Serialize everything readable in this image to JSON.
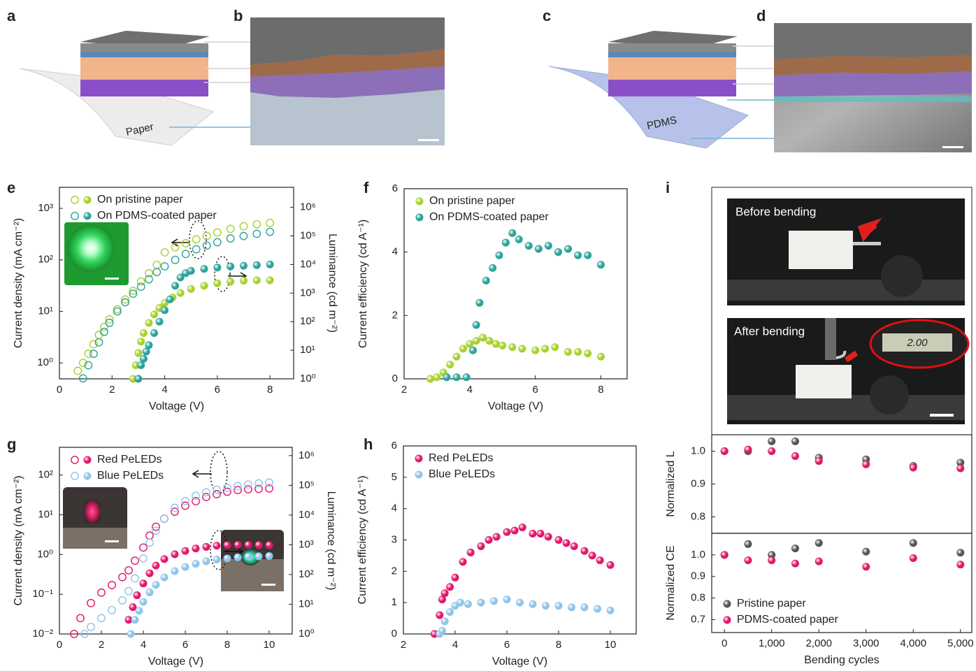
{
  "illustrations": [
    {
      "label": "a",
      "text": "Paper"
    },
    {
      "label": "b"
    },
    {
      "label": "c",
      "text": "PDMS"
    },
    {
      "label": "d"
    }
  ],
  "photos": {
    "label": "i",
    "before": "Before bending",
    "after": "After bending",
    "display": "2.00"
  },
  "chart_data": [
    {
      "type": "scatter",
      "label": "e",
      "xlabel": "Voltage (V)",
      "ylabel": "Current density (mA cm⁻²)",
      "y2label": "Luminance (cd m⁻²)",
      "xlim": [
        0,
        8.9
      ],
      "xticks": [
        0,
        2,
        4,
        6,
        8
      ],
      "ylim": [
        0.49,
        2560
      ],
      "ylog": true,
      "yticks": [
        {
          "value": 1,
          "label": "10⁰"
        },
        {
          "value": 10,
          "label": "10¹"
        },
        {
          "value": 100,
          "label": "10²"
        },
        {
          "value": 1000,
          "label": "10³"
        }
      ],
      "y2lim": [
        1,
        5000000
      ],
      "y2log": true,
      "y2ticks": [
        {
          "value": 1,
          "label": "10⁰"
        },
        {
          "value": 10,
          "label": "10¹"
        },
        {
          "value": 100,
          "label": "10²"
        },
        {
          "value": 1000,
          "label": "10³"
        },
        {
          "value": 10000,
          "label": "10⁴"
        },
        {
          "value": 100000,
          "label": "10⁵"
        },
        {
          "value": 1000000,
          "label": "10⁶"
        }
      ],
      "legend": "upper left",
      "series": [
        {
          "name": "On pristine paper",
          "color": "#a6d22c",
          "marker": "open",
          "x": [
            0.7,
            0.9,
            1.1,
            1.3,
            1.5,
            1.7,
            1.9,
            2.2,
            2.5,
            2.8,
            3.1,
            3.4,
            3.7,
            4.0,
            4.4,
            4.8,
            5.2,
            5.6,
            6.0,
            6.5,
            7.0,
            7.5,
            8.0
          ],
          "values": [
            0.7,
            1.0,
            1.5,
            2.3,
            3.5,
            5,
            7,
            11,
            17,
            25,
            38,
            55,
            80,
            140,
            175,
            210,
            250,
            290,
            340,
            400,
            450,
            490,
            520
          ]
        },
        {
          "color": "#a6d22c",
          "marker": "filled",
          "axis": "y2",
          "x": [
            2.8,
            2.9,
            3.0,
            3.1,
            3.2,
            3.4,
            3.6,
            3.8,
            4.0,
            4.3,
            4.6,
            5.0,
            5.5,
            6.0,
            6.5,
            7.0,
            7.5,
            8.0
          ],
          "values": [
            1,
            3,
            8,
            20,
            40,
            90,
            180,
            300,
            450,
            700,
            1000,
            1400,
            1800,
            2200,
            2500,
            2700,
            2800,
            2800
          ]
        },
        {
          "name": "On PDMS-coated paper",
          "color": "#2aa39b",
          "marker": "open",
          "x": [
            0.9,
            1.1,
            1.3,
            1.5,
            1.7,
            1.9,
            2.2,
            2.5,
            2.8,
            3.1,
            3.4,
            3.7,
            4.0,
            4.4,
            4.8,
            5.2,
            5.6,
            6.0,
            6.5,
            7.0,
            7.5,
            8.0
          ],
          "values": [
            0.5,
            0.9,
            1.5,
            2.5,
            4,
            6,
            10,
            15,
            22,
            30,
            42,
            58,
            75,
            100,
            130,
            160,
            190,
            220,
            260,
            290,
            320,
            350
          ]
        },
        {
          "color": "#2aa39b",
          "marker": "filled",
          "axis": "y2",
          "x": [
            3.0,
            3.1,
            3.2,
            3.3,
            3.4,
            3.6,
            3.8,
            4.0,
            4.2,
            4.4,
            4.6,
            4.8,
            5.0,
            5.5,
            6.0,
            6.5,
            7.0,
            7.5,
            8.0
          ],
          "values": [
            1,
            3,
            5,
            9,
            15,
            40,
            100,
            250,
            600,
            1800,
            3500,
            5000,
            6000,
            7000,
            7800,
            8500,
            9000,
            9500,
            10000
          ]
        }
      ]
    },
    {
      "type": "scatter",
      "label": "f",
      "xlabel": "Voltage (V)",
      "ylabel": "Current efficiency (cd A⁻¹)",
      "xlim": [
        2,
        8.8
      ],
      "xticks": [
        2,
        4,
        6,
        8
      ],
      "ylim": [
        0,
        6
      ],
      "yticks": [
        0,
        2,
        4,
        6
      ],
      "legend": "upper left",
      "series": [
        {
          "name": "On pristine paper",
          "color": "#a6d22c",
          "marker": "filled",
          "x": [
            2.8,
            3.0,
            3.2,
            3.4,
            3.6,
            3.8,
            4.0,
            4.2,
            4.4,
            4.6,
            4.8,
            5.0,
            5.3,
            5.6,
            6.0,
            6.3,
            6.6,
            7.0,
            7.3,
            7.6,
            8.0
          ],
          "values": [
            0,
            0.05,
            0.2,
            0.45,
            0.7,
            0.95,
            1.1,
            1.2,
            1.3,
            1.2,
            1.1,
            1.05,
            1.0,
            0.95,
            0.9,
            0.95,
            1.0,
            0.85,
            0.85,
            0.8,
            0.7
          ]
        },
        {
          "name": "On PDMS-coated paper",
          "color": "#2aa39b",
          "marker": "filled",
          "x": [
            3.3,
            3.6,
            3.9,
            4.1,
            4.2,
            4.3,
            4.5,
            4.7,
            4.9,
            5.1,
            5.3,
            5.5,
            5.8,
            6.1,
            6.4,
            6.7,
            7.0,
            7.3,
            7.6,
            8.0
          ],
          "values": [
            0.05,
            0.05,
            0.05,
            0.9,
            1.7,
            2.4,
            3.1,
            3.5,
            3.9,
            4.3,
            4.6,
            4.4,
            4.2,
            4.1,
            4.2,
            4.0,
            4.1,
            3.9,
            3.9,
            3.6
          ]
        }
      ]
    },
    {
      "type": "scatter",
      "label": "g",
      "xlabel": "Voltage (V)",
      "ylabel": "Current density (mA cm⁻²)",
      "y2label": "Luminance (cd m⁻²)",
      "xlim": [
        0,
        11.1
      ],
      "xticks": [
        0,
        2,
        4,
        6,
        8,
        10
      ],
      "ylim": [
        0.01,
        500
      ],
      "ylog": true,
      "yticks": [
        {
          "value": 0.01,
          "label": "10⁻²"
        },
        {
          "value": 0.1,
          "label": "10⁻¹"
        },
        {
          "value": 1,
          "label": "10⁰"
        },
        {
          "value": 10,
          "label": "10¹"
        },
        {
          "value": 100,
          "label": "10²"
        }
      ],
      "y2lim": [
        1,
        1900000
      ],
      "y2log": true,
      "y2ticks": [
        {
          "value": 1,
          "label": "10⁰"
        },
        {
          "value": 10,
          "label": "10¹"
        },
        {
          "value": 100,
          "label": "10²"
        },
        {
          "value": 1000,
          "label": "10³"
        },
        {
          "value": 10000,
          "label": "10⁴"
        },
        {
          "value": 100000,
          "label": "10⁵"
        },
        {
          "value": 1000000,
          "label": "10⁶"
        }
      ],
      "legend": "upper left",
      "series": [
        {
          "name": "Red PeLEDs",
          "color": "#e2166a",
          "marker": "open",
          "x": [
            0.7,
            1.0,
            1.5,
            2.0,
            2.5,
            3.0,
            3.3,
            3.6,
            4.0,
            4.3,
            4.6,
            5.0,
            5.5,
            6.0,
            6.5,
            7.0,
            7.5,
            8.0,
            8.5,
            9.0,
            9.5,
            10.0
          ],
          "values": [
            0.01,
            0.025,
            0.06,
            0.11,
            0.17,
            0.27,
            0.4,
            0.7,
            1.5,
            3,
            5,
            8,
            12,
            17,
            22,
            28,
            33,
            38,
            42,
            44,
            45,
            46
          ]
        },
        {
          "color": "#e2166a",
          "marker": "filled",
          "axis": "y2",
          "x": [
            3.3,
            3.5,
            3.7,
            4.0,
            4.3,
            4.6,
            5.0,
            5.5,
            6.0,
            6.5,
            7.0,
            7.5,
            8.0,
            8.5,
            9.0,
            9.5,
            10.0
          ],
          "values": [
            3,
            8,
            20,
            50,
            110,
            200,
            330,
            480,
            620,
            750,
            850,
            930,
            980,
            1000,
            1000,
            990,
            980
          ]
        },
        {
          "name": "Blue PeLEDs",
          "color": "#8fc4ea",
          "marker": "open",
          "x": [
            1.2,
            1.5,
            2.0,
            2.5,
            3.0,
            3.3,
            3.6,
            4.0,
            4.3,
            4.6,
            5.0,
            5.5,
            6.0,
            6.5,
            7.0,
            7.5,
            8.0,
            8.5,
            9.0,
            9.5,
            10.0
          ],
          "values": [
            0.01,
            0.015,
            0.025,
            0.04,
            0.07,
            0.12,
            0.25,
            0.8,
            2,
            4,
            8,
            15,
            22,
            30,
            37,
            43,
            48,
            53,
            58,
            62,
            65
          ]
        },
        {
          "color": "#8fc4ea",
          "marker": "filled",
          "axis": "y2",
          "x": [
            3.4,
            3.6,
            3.8,
            4.0,
            4.3,
            4.6,
            5.0,
            5.5,
            6.0,
            6.5,
            7.0,
            7.5,
            8.0,
            8.5,
            9.0,
            9.5,
            10.0
          ],
          "values": [
            1,
            3,
            6,
            12,
            25,
            45,
            80,
            130,
            180,
            230,
            280,
            320,
            350,
            380,
            400,
            410,
            420
          ]
        }
      ]
    },
    {
      "type": "scatter",
      "label": "h",
      "xlabel": "Voltage (V)",
      "ylabel": "Current efficiency (cd A⁻¹)",
      "xlim": [
        2,
        11
      ],
      "xticks": [
        2,
        4,
        6,
        8,
        10
      ],
      "ylim": [
        0,
        6
      ],
      "yticks": [
        0,
        1,
        2,
        3,
        4,
        5,
        6
      ],
      "legend": "upper left",
      "series": [
        {
          "name": "Red PeLEDs",
          "color": "#e2166a",
          "marker": "filled",
          "x": [
            3.2,
            3.4,
            3.5,
            3.6,
            3.8,
            4.0,
            4.3,
            4.6,
            5.0,
            5.3,
            5.6,
            6.0,
            6.3,
            6.6,
            7.0,
            7.3,
            7.6,
            8.0,
            8.3,
            8.6,
            9.0,
            9.3,
            9.6,
            10.0
          ],
          "values": [
            0,
            0.6,
            1.1,
            1.3,
            1.5,
            1.8,
            2.3,
            2.6,
            2.8,
            3.0,
            3.1,
            3.25,
            3.3,
            3.4,
            3.2,
            3.2,
            3.1,
            3.0,
            2.9,
            2.8,
            2.65,
            2.5,
            2.35,
            2.2
          ]
        },
        {
          "name": "Blue PeLEDs",
          "color": "#8fc4ea",
          "marker": "filled",
          "x": [
            3.4,
            3.5,
            3.6,
            3.8,
            4.0,
            4.2,
            4.5,
            5.0,
            5.5,
            6.0,
            6.5,
            7.0,
            7.5,
            8.0,
            8.5,
            9.0,
            9.5,
            10.0
          ],
          "values": [
            0,
            0.1,
            0.4,
            0.7,
            0.9,
            1.0,
            0.95,
            1.0,
            1.05,
            1.1,
            1.0,
            0.95,
            0.9,
            0.9,
            0.85,
            0.85,
            0.8,
            0.75
          ]
        }
      ]
    },
    {
      "type": "scatter",
      "ylabel": "Normalized L",
      "xlim": [
        -270,
        5240
      ],
      "ylim": [
        0.75,
        1.05
      ],
      "yticks": [
        {
          "value": 0.8,
          "label": "0.8"
        },
        {
          "value": 0.9,
          "label": "0.9"
        },
        {
          "value": 1,
          "label": "1.0"
        }
      ],
      "series": [
        {
          "color": "#555555",
          "marker": "filled",
          "x": [
            0,
            500,
            1000,
            1500,
            2000,
            3000,
            4000,
            5000
          ],
          "values": [
            1.0,
            1.0,
            1.03,
            1.03,
            0.98,
            0.975,
            0.955,
            0.965
          ]
        },
        {
          "color": "#e2166a",
          "marker": "filled",
          "x": [
            0,
            500,
            1000,
            1500,
            2000,
            3000,
            4000,
            5000
          ],
          "values": [
            1.0,
            1.005,
            1.0,
            0.985,
            0.97,
            0.96,
            0.95,
            0.948
          ]
        }
      ]
    },
    {
      "type": "scatter",
      "xlabel": "Bending cycles",
      "ylabel": "Normalized CE",
      "xlim": [
        -270,
        5240
      ],
      "xticks": [
        0,
        {
          "value": 1000,
          "label": "1,000"
        },
        {
          "value": 2000,
          "label": "2,000"
        },
        {
          "value": 3000,
          "label": "3,000"
        },
        {
          "value": 4000,
          "label": "4,000"
        },
        {
          "value": 5000,
          "label": "5,000"
        }
      ],
      "ylim": [
        0.64,
        1.1
      ],
      "yticks": [
        {
          "value": 0.7,
          "label": "0.7"
        },
        {
          "value": 0.8,
          "label": "0.8"
        },
        {
          "value": 0.9,
          "label": "0.9"
        },
        {
          "value": 1,
          "label": "1.0"
        }
      ],
      "legend": "lower left",
      "series": [
        {
          "name": "Pristine paper",
          "color": "#555555",
          "marker": "filled",
          "x": [
            0,
            500,
            1000,
            1500,
            2000,
            3000,
            4000,
            5000
          ],
          "values": [
            1.0,
            1.05,
            1.0,
            1.03,
            1.055,
            1.015,
            1.055,
            1.01
          ]
        },
        {
          "name": "PDMS-coated paper",
          "color": "#e2166a",
          "marker": "filled",
          "x": [
            0,
            500,
            1000,
            1500,
            2000,
            3000,
            4000,
            5000
          ],
          "values": [
            1.0,
            0.975,
            0.975,
            0.96,
            0.97,
            0.945,
            0.985,
            0.955
          ]
        }
      ]
    }
  ]
}
